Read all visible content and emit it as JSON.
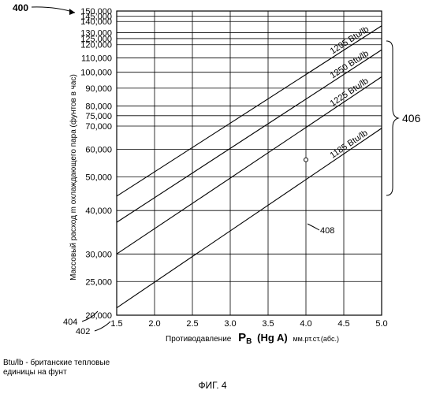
{
  "figure_ref": "400",
  "refs": {
    "series_group": "406",
    "point": "408",
    "y_axis": "404",
    "x_axis": "402"
  },
  "footnote": [
    "Btu/lb - британские тепловые",
    "единицы на фунт"
  ],
  "caption": "ФИГ. 4",
  "chart_data": {
    "type": "line",
    "xlabel_prefix": "Противодавление",
    "xlabel_main": "P",
    "xlabel_sub": "B",
    "xlabel_paren": "(Hg A)",
    "xlabel_suffix": "мм.рт.ст.(абс.)",
    "ylabel": "Массовый расход m охлаждающего пара (фунтов в час)",
    "x_ticks": [
      "1.5",
      "2.0",
      "2.5",
      "3.0",
      "3.5",
      "4.0",
      "4.5",
      "5.0"
    ],
    "y_ticks": [
      "20,000",
      "25,000",
      "30,000",
      "40,000",
      "50,000",
      "60,000",
      "70,000",
      "75,000",
      "80,000",
      "90,000",
      "100,000",
      "110,000",
      "120,000",
      "125,000",
      "130,000",
      "140,000",
      "145,000",
      "150,000"
    ],
    "xlim": [
      1.5,
      5.0
    ],
    "ylim": [
      20000,
      150000
    ],
    "grid": true,
    "series": [
      {
        "name": "1295 Btu/lb",
        "x": [
          1.5,
          5.0
        ],
        "y": [
          44000,
          136000
        ]
      },
      {
        "name": "1250 Btu/lb",
        "x": [
          1.5,
          5.0
        ],
        "y": [
          37000,
          116000
        ]
      },
      {
        "name": "1225 Btu/lb",
        "x": [
          1.5,
          5.0
        ],
        "y": [
          30000,
          97000
        ]
      },
      {
        "name": "1185 Btu/lb",
        "x": [
          1.5,
          5.0
        ],
        "y": [
          21000,
          69000
        ]
      }
    ],
    "marked_point": {
      "x": 4.0,
      "y": 56000
    }
  }
}
